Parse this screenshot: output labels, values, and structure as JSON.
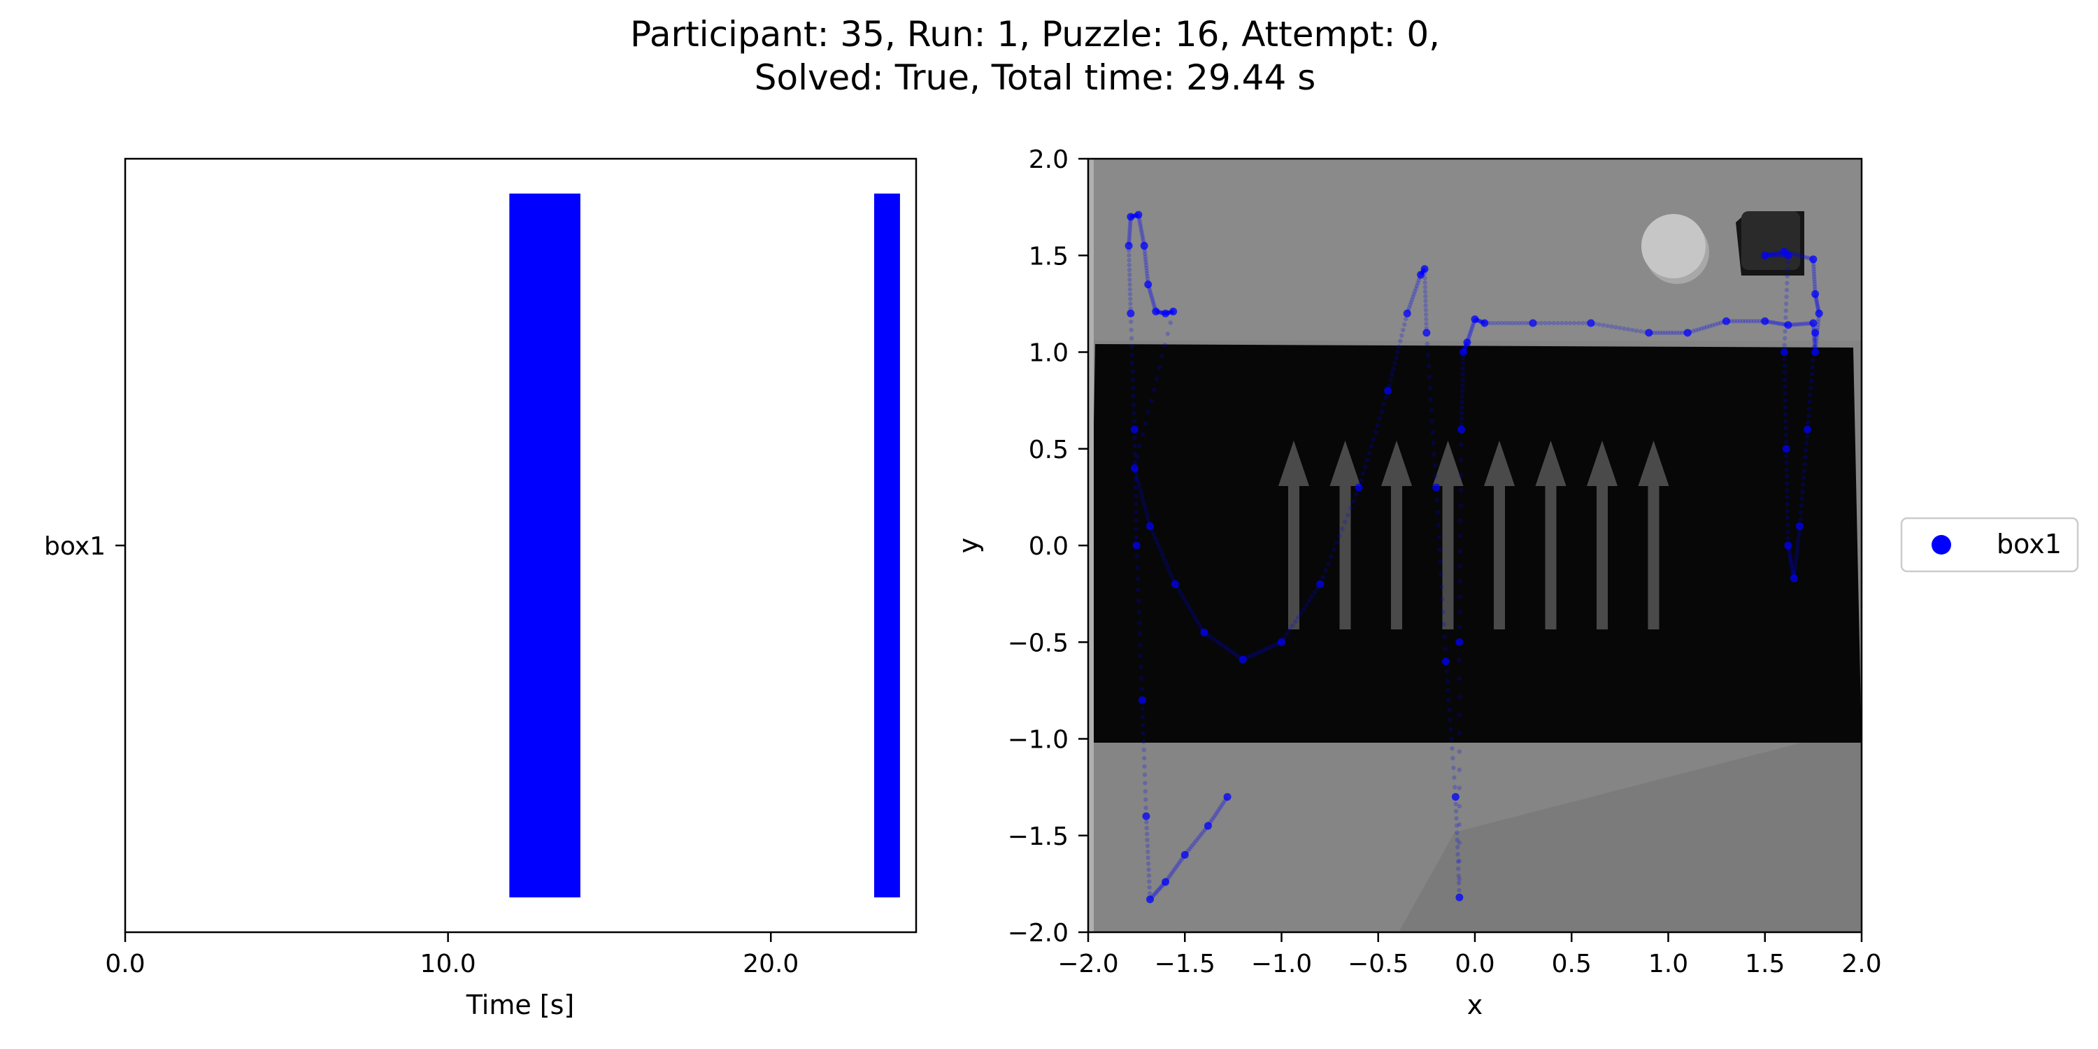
{
  "figure": {
    "title_line1": "Participant: 35, Run: 1, Puzzle: 16, Attempt: 0,",
    "title_line2": "Solved: True, Total time: 29.44 s"
  },
  "chart_data": [
    {
      "type": "bar",
      "orientation": "horizontal",
      "xlabel": "Time [s]",
      "ylabel": "",
      "xlim": [
        0,
        24.5
      ],
      "xticks": [
        0,
        10,
        20
      ],
      "xtick_labels": [
        "0.0",
        "10.0",
        "20.0"
      ],
      "categories": [
        "box1"
      ],
      "color": "#0000ff",
      "intervals": [
        {
          "category": "box1",
          "start": 11.9,
          "end": 14.1
        },
        {
          "category": "box1",
          "start": 23.2,
          "end": 24.0
        }
      ],
      "grid": false
    },
    {
      "type": "scatter",
      "xlabel": "x",
      "ylabel": "y",
      "xlim": [
        -2,
        2
      ],
      "ylim": [
        -2,
        2
      ],
      "xticks": [
        -2,
        -1.5,
        -1,
        -0.5,
        0,
        0.5,
        1,
        1.5,
        2
      ],
      "xtick_labels": [
        "−2.0",
        "−1.5",
        "−1.0",
        "−0.5",
        "0.0",
        "0.5",
        "1.0",
        "1.5",
        "2.0"
      ],
      "yticks": [
        2,
        1.5,
        1,
        0.5,
        0,
        -0.5,
        -1,
        -1.5,
        -2
      ],
      "ytick_labels": [
        "2.0",
        "1.5",
        "1.0",
        "0.5",
        "0.0",
        "−0.5",
        "−1.0",
        "−1.5",
        "−2.0"
      ],
      "legend": {
        "position": "right",
        "entries": [
          "box1"
        ]
      },
      "grid": false,
      "background": "scene image: grey floor, black band with up arrows, sphere and dark box near top right",
      "series": [
        {
          "name": "box1",
          "color": "#0000ff",
          "points": [
            [
              -1.28,
              -1.3
            ],
            [
              -1.38,
              -1.45
            ],
            [
              -1.5,
              -1.6
            ],
            [
              -1.6,
              -1.74
            ],
            [
              -1.68,
              -1.83
            ],
            [
              -1.7,
              -1.4
            ],
            [
              -1.72,
              -0.8
            ],
            [
              -1.75,
              0.0
            ],
            [
              -1.76,
              0.6
            ],
            [
              -1.78,
              1.2
            ],
            [
              -1.79,
              1.55
            ],
            [
              -1.78,
              1.7
            ],
            [
              -1.74,
              1.71
            ],
            [
              -1.71,
              1.55
            ],
            [
              -1.69,
              1.35
            ],
            [
              -1.65,
              1.21
            ],
            [
              -1.6,
              1.2
            ],
            [
              -1.56,
              1.21
            ],
            [
              -1.76,
              0.4
            ],
            [
              -1.68,
              0.1
            ],
            [
              -1.55,
              -0.2
            ],
            [
              -1.4,
              -0.45
            ],
            [
              -1.2,
              -0.59
            ],
            [
              -1.0,
              -0.5
            ],
            [
              -0.8,
              -0.2
            ],
            [
              -0.6,
              0.3
            ],
            [
              -0.45,
              0.8
            ],
            [
              -0.35,
              1.2
            ],
            [
              -0.28,
              1.4
            ],
            [
              -0.26,
              1.43
            ],
            [
              -0.25,
              1.1
            ],
            [
              -0.2,
              0.3
            ],
            [
              -0.15,
              -0.6
            ],
            [
              -0.1,
              -1.3
            ],
            [
              -0.08,
              -1.82
            ],
            [
              -0.08,
              -0.5
            ],
            [
              -0.07,
              0.6
            ],
            [
              -0.06,
              1.0
            ],
            [
              -0.04,
              1.05
            ],
            [
              0.0,
              1.17
            ],
            [
              0.05,
              1.15
            ],
            [
              0.3,
              1.15
            ],
            [
              0.6,
              1.15
            ],
            [
              0.9,
              1.1
            ],
            [
              1.1,
              1.1
            ],
            [
              1.3,
              1.16
            ],
            [
              1.5,
              1.16
            ],
            [
              1.62,
              1.14
            ],
            [
              1.75,
              1.15
            ],
            [
              1.76,
              1.0
            ],
            [
              1.78,
              1.2
            ],
            [
              1.76,
              1.3
            ],
            [
              1.75,
              1.48
            ],
            [
              1.6,
              1.52
            ],
            [
              1.5,
              1.5
            ],
            [
              1.62,
              1.5
            ],
            [
              1.6,
              1.0
            ],
            [
              1.61,
              0.5
            ],
            [
              1.62,
              0.0
            ],
            [
              1.65,
              -0.17
            ],
            [
              1.68,
              0.1
            ],
            [
              1.72,
              0.6
            ],
            [
              1.76,
              1.1
            ]
          ]
        }
      ]
    }
  ]
}
